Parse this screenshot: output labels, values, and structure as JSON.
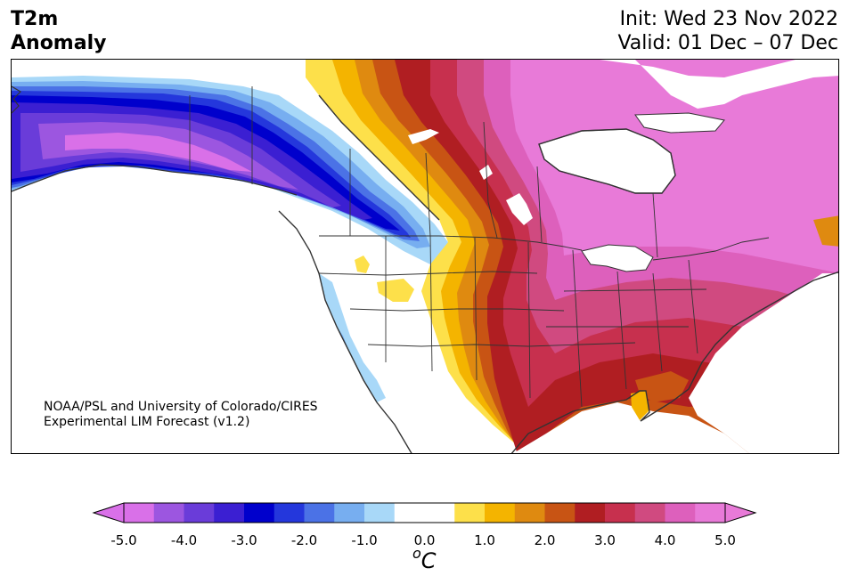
{
  "title": {
    "left_line1": "T2m",
    "left_line2": "Anomaly",
    "init": "Init: Wed 23 Nov 2022",
    "valid": "Valid: 01 Dec – 07 Dec"
  },
  "credit": {
    "line1": "NOAA/PSL and University of Colorado/CIRES",
    "line2": "Experimental LIM Forecast (v1.2)"
  },
  "colorbar": {
    "ticks": [
      "-5.0",
      "-4.0",
      "-3.0",
      "-2.0",
      "-1.0",
      "0.0",
      "1.0",
      "2.0",
      "3.0",
      "4.0",
      "5.0"
    ],
    "unit_base": "C",
    "unit_sup": "o",
    "colors": [
      "#d970e8",
      "#9c56e0",
      "#6a3cd9",
      "#3b1fd2",
      "#0000cc",
      "#2437dc",
      "#4b72e6",
      "#77aef0",
      "#a8d8f8",
      "#ffffff",
      "#ffffff",
      "#fde04a",
      "#f4b400",
      "#df8a10",
      "#c85414",
      "#b01e22",
      "#c7304e",
      "#d04a80",
      "#dd60bc",
      "#e87ad8"
    ],
    "under_color": "#d970e8",
    "over_color": "#e87ad8"
  }
}
